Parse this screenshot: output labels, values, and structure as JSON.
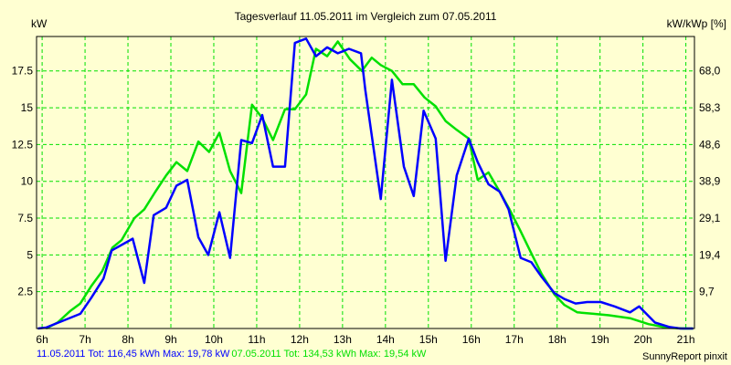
{
  "chart_data": {
    "type": "line",
    "title": "Tagesverlauf 11.05.2011 im Vergleich zum 07.05.2011",
    "ylabel": "kW",
    "ylabel_right": "kW/kWp [%]",
    "xlim": [
      5.87,
      21.2
    ],
    "ylim": [
      0,
      19.84
    ],
    "grid": true,
    "x_ticks": [
      6,
      7,
      8,
      9,
      10,
      11,
      12,
      13,
      14,
      15,
      16,
      17,
      18,
      19,
      20,
      21
    ],
    "x_tick_labels": [
      "6h",
      "7h",
      "8h",
      "9h",
      "10h",
      "11h",
      "12h",
      "13h",
      "14h",
      "15h",
      "16h",
      "17h",
      "18h",
      "19h",
      "20h",
      "21h"
    ],
    "y_ticks": [
      2.5,
      5,
      7.5,
      10,
      12.5,
      15,
      17.5
    ],
    "y_tick_labels": [
      "2.5",
      "5",
      "7.5",
      "10",
      "12.5",
      "15",
      "17.5"
    ],
    "y_right_tick_labels": [
      "9,7",
      "19,4",
      "29,1",
      "38,9",
      "48,6",
      "58,3",
      "68,0"
    ],
    "series": [
      {
        "name": "11.05.2011",
        "color": "#0000FF",
        "legend": "11.05.2011 Tot: 116,45 kWh Max: 19,78 kW",
        "points": [
          [
            5.9,
            0
          ],
          [
            6.09,
            0.06
          ],
          [
            6.89,
            1.0
          ],
          [
            7.15,
            2.1
          ],
          [
            7.43,
            3.4
          ],
          [
            7.62,
            5.3
          ],
          [
            8.11,
            6.1
          ],
          [
            8.38,
            3.1
          ],
          [
            8.6,
            7.7
          ],
          [
            8.89,
            8.2
          ],
          [
            9.13,
            9.7
          ],
          [
            9.38,
            10.1
          ],
          [
            9.64,
            6.2
          ],
          [
            9.87,
            5.0
          ],
          [
            10.13,
            7.9
          ],
          [
            10.38,
            4.8
          ],
          [
            10.64,
            12.8
          ],
          [
            10.89,
            12.6
          ],
          [
            11.13,
            14.5
          ],
          [
            11.38,
            11.0
          ],
          [
            11.66,
            11.0
          ],
          [
            11.89,
            19.4
          ],
          [
            12.15,
            19.7
          ],
          [
            12.38,
            18.5
          ],
          [
            12.64,
            19.1
          ],
          [
            12.89,
            18.7
          ],
          [
            13.15,
            19.0
          ],
          [
            13.43,
            18.7
          ],
          [
            13.53,
            16.2
          ],
          [
            13.89,
            8.8
          ],
          [
            14.15,
            16.9
          ],
          [
            14.43,
            11.0
          ],
          [
            14.66,
            9.0
          ],
          [
            14.89,
            14.8
          ],
          [
            15.17,
            12.9
          ],
          [
            15.4,
            4.6
          ],
          [
            15.66,
            10.4
          ],
          [
            15.94,
            12.9
          ],
          [
            16.15,
            11.3
          ],
          [
            16.4,
            9.8
          ],
          [
            16.66,
            9.3
          ],
          [
            16.87,
            8.1
          ],
          [
            17.15,
            4.8
          ],
          [
            17.4,
            4.5
          ],
          [
            17.64,
            3.5
          ],
          [
            17.94,
            2.4
          ],
          [
            18.17,
            2.0
          ],
          [
            18.43,
            1.7
          ],
          [
            18.7,
            1.8
          ],
          [
            19.02,
            1.8
          ],
          [
            19.34,
            1.5
          ],
          [
            19.7,
            1.1
          ],
          [
            19.91,
            1.5
          ],
          [
            20.28,
            0.4
          ],
          [
            20.62,
            0.1
          ],
          [
            20.87,
            0
          ],
          [
            21.17,
            0
          ]
        ]
      },
      {
        "name": "07.05.2011",
        "color": "#00E000",
        "legend": "07.05.2011 Tot: 134,53 kWh Max: 19,54 kW",
        "points": [
          [
            6.09,
            0
          ],
          [
            6.36,
            0.4
          ],
          [
            6.66,
            1.2
          ],
          [
            6.89,
            1.7
          ],
          [
            7.15,
            2.9
          ],
          [
            7.4,
            3.9
          ],
          [
            7.64,
            5.5
          ],
          [
            7.85,
            6.0
          ],
          [
            8.15,
            7.5
          ],
          [
            8.38,
            8.1
          ],
          [
            8.64,
            9.3
          ],
          [
            8.89,
            10.4
          ],
          [
            9.13,
            11.3
          ],
          [
            9.38,
            10.7
          ],
          [
            9.64,
            12.7
          ],
          [
            9.89,
            12.0
          ],
          [
            10.13,
            13.3
          ],
          [
            10.38,
            10.7
          ],
          [
            10.64,
            9.2
          ],
          [
            10.89,
            15.2
          ],
          [
            11.13,
            14.3
          ],
          [
            11.38,
            12.8
          ],
          [
            11.66,
            14.9
          ],
          [
            11.89,
            14.9
          ],
          [
            12.15,
            15.9
          ],
          [
            12.38,
            19.0
          ],
          [
            12.64,
            18.5
          ],
          [
            12.89,
            19.5
          ],
          [
            13.17,
            18.3
          ],
          [
            13.45,
            17.5
          ],
          [
            13.68,
            18.4
          ],
          [
            13.89,
            17.9
          ],
          [
            14.15,
            17.5
          ],
          [
            14.4,
            16.6
          ],
          [
            14.66,
            16.6
          ],
          [
            14.91,
            15.7
          ],
          [
            15.17,
            15.1
          ],
          [
            15.4,
            14.1
          ],
          [
            15.66,
            13.5
          ],
          [
            15.94,
            12.9
          ],
          [
            16.15,
            10.1
          ],
          [
            16.4,
            10.6
          ],
          [
            16.66,
            9.3
          ],
          [
            16.89,
            8.1
          ],
          [
            17.15,
            6.6
          ],
          [
            17.4,
            5.1
          ],
          [
            17.64,
            3.7
          ],
          [
            17.94,
            2.3
          ],
          [
            18.17,
            1.6
          ],
          [
            18.47,
            1.1
          ],
          [
            18.85,
            1.0
          ],
          [
            19.21,
            0.9
          ],
          [
            19.7,
            0.7
          ],
          [
            20.13,
            0.3
          ],
          [
            20.55,
            0.06
          ],
          [
            20.94,
            0
          ],
          [
            21.17,
            0
          ]
        ]
      }
    ]
  },
  "footer": {
    "credit": "SunnyReport pinxit"
  }
}
